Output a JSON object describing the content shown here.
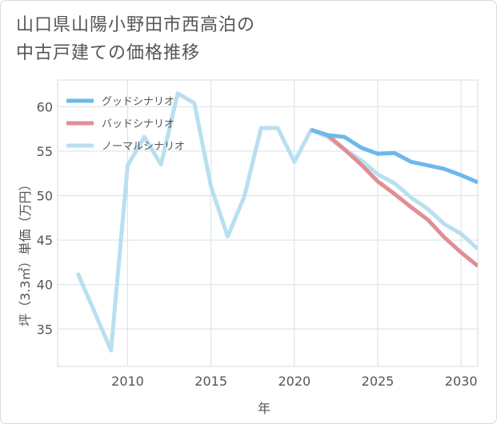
{
  "title_lines": [
    "山口県山陽小野田市西高泊の",
    "中古戸建ての価格推移"
  ],
  "chart_data": {
    "type": "line",
    "title": "山口県山陽小野田市西高泊の中古戸建ての価格推移",
    "xlabel": "年",
    "ylabel": "坪（3.3㎡）単価（万円）",
    "xlim": [
      2005.8,
      2031
    ],
    "ylim": [
      30.8,
      63
    ],
    "xticks": [
      2010,
      2015,
      2020,
      2025,
      2030
    ],
    "yticks": [
      35,
      40,
      45,
      50,
      55,
      60
    ],
    "grid": true,
    "legend_position": "top-left",
    "series": [
      {
        "name": "グッドシナリオ",
        "color": "#6cb8ec",
        "x": [
          2021,
          2022,
          2023,
          2024,
          2025,
          2026,
          2027,
          2028,
          2029,
          2030,
          2031
        ],
        "y": [
          57.4,
          56.8,
          56.6,
          55.4,
          54.7,
          54.8,
          53.8,
          53.4,
          53.0,
          52.3,
          51.5
        ]
      },
      {
        "name": "バッドシナリオ",
        "color": "#e08e95",
        "x": [
          2021,
          2022,
          2023,
          2024,
          2025,
          2026,
          2027,
          2028,
          2029,
          2030,
          2031
        ],
        "y": [
          57.4,
          56.8,
          55.2,
          53.5,
          51.6,
          50.2,
          48.7,
          47.3,
          45.3,
          43.6,
          42.1
        ]
      },
      {
        "name": "ノーマルシナリオ",
        "color": "#b9dff0",
        "x": [
          2007,
          2008,
          2009,
          2010,
          2011,
          2012,
          2013,
          2014,
          2015,
          2016,
          2017,
          2018,
          2019,
          2020,
          2021,
          2022,
          2023,
          2024,
          2025,
          2026,
          2027,
          2028,
          2029,
          2030,
          2031
        ],
        "y": [
          41.3,
          37.0,
          32.6,
          53.4,
          56.6,
          53.5,
          61.5,
          60.4,
          51.0,
          45.4,
          49.9,
          57.6,
          57.6,
          53.8,
          57.4,
          56.6,
          55.2,
          54.0,
          52.4,
          51.4,
          49.8,
          48.5,
          46.8,
          45.7,
          44.0
        ]
      }
    ]
  }
}
